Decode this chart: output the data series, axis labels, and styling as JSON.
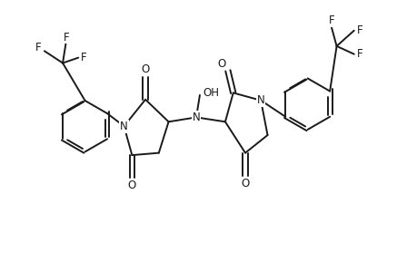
{
  "background": "#ffffff",
  "line_color": "#1a1a1a",
  "line_width": 1.4,
  "font_size": 8.5,
  "fig_width": 4.6,
  "fig_height": 3.0,
  "dpi": 100,
  "xlim": [
    0,
    9.2
  ],
  "ylim": [
    0,
    6.0
  ]
}
